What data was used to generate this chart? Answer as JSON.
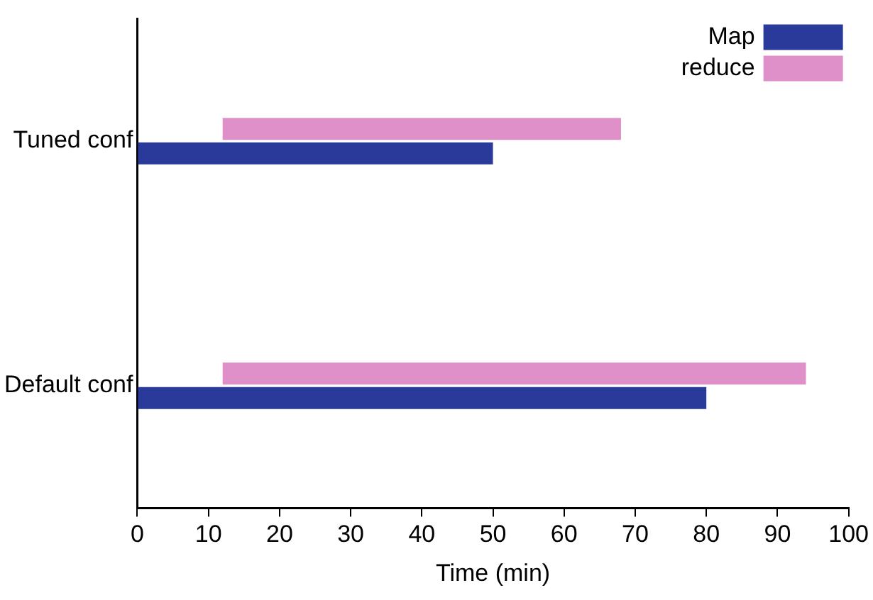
{
  "chart_data": {
    "type": "bar",
    "orientation": "horizontal",
    "xlabel": "Time (min)",
    "categories": [
      "Tuned conf",
      "Default conf"
    ],
    "series": [
      {
        "name": "Map",
        "color": "#2a3a9a",
        "values": [
          50,
          80
        ],
        "base": [
          0,
          0
        ]
      },
      {
        "name": "reduce",
        "color": "#e090c8",
        "values": [
          56,
          82
        ],
        "base": [
          12,
          12
        ]
      }
    ],
    "xlim": [
      0,
      100
    ],
    "xticks": [
      0,
      10,
      20,
      30,
      40,
      50,
      60,
      70,
      80,
      90,
      100
    ],
    "grid": false,
    "legend": "top right"
  }
}
